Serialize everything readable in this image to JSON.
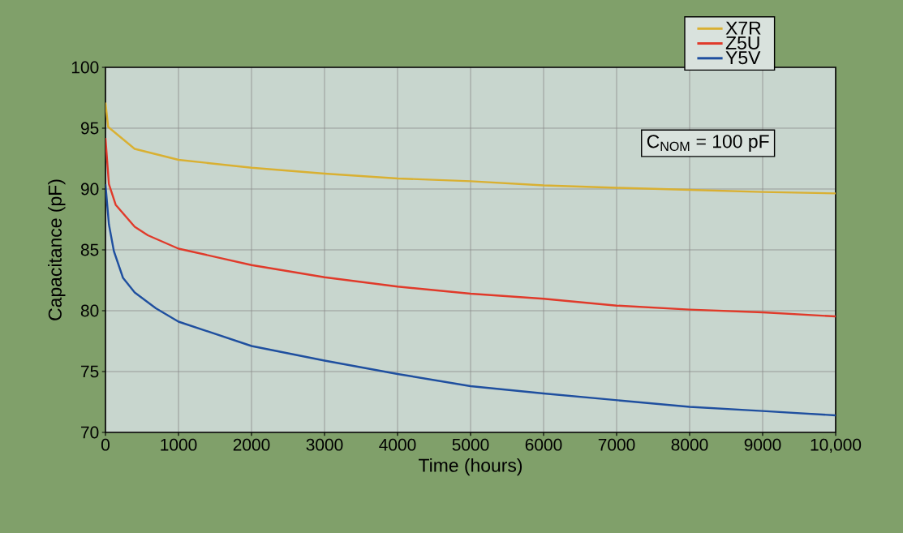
{
  "chart_data": {
    "type": "line",
    "xlabel": "Time (hours)",
    "ylabel": "Capacitance (pF)",
    "xlim": [
      0,
      10000
    ],
    "xticks": [
      0,
      1000,
      2000,
      3000,
      4000,
      5000,
      6000,
      7000,
      8000,
      9000,
      {
        "value": 10000,
        "label": "10,000"
      }
    ],
    "ylim": [
      70,
      100
    ],
    "yticks": [
      70,
      75,
      80,
      85,
      90,
      95,
      100
    ],
    "grid": true,
    "legend": "top right",
    "marker": "none",
    "line_style": "solid",
    "annotations": [
      "C$_{NOM}$ = 100 pF"
    ],
    "series": [
      {
        "name": "X7R",
        "color": "#d9b032",
        "x": [
          0,
          37,
          400,
          1000,
          2000,
          3000,
          4000,
          5000,
          6000,
          7000,
          8000,
          9000,
          10000
        ],
        "values": [
          97.1,
          95.1,
          93.3,
          92.4,
          91.75,
          91.27,
          90.87,
          90.64,
          90.3,
          90.1,
          89.93,
          89.76,
          89.64
        ]
      },
      {
        "name": "Z5U",
        "color": "#e03a2a",
        "x": [
          0,
          47,
          140,
          400,
          580,
          1000,
          2000,
          3000,
          4000,
          5000,
          6000,
          7000,
          8000,
          9000,
          10000
        ],
        "values": [
          94.2,
          90.4,
          88.7,
          86.9,
          86.2,
          85.1,
          83.75,
          82.75,
          81.98,
          81.4,
          80.98,
          80.42,
          80.09,
          79.87,
          79.53
        ]
      },
      {
        "name": "Y5V",
        "color": "#1f4f9f",
        "x": [
          0,
          47,
          115,
          240,
          400,
          690,
          1000,
          2000,
          3000,
          4000,
          5000,
          6000,
          7000,
          8000,
          9000,
          10000
        ],
        "values": [
          90.4,
          87.1,
          84.9,
          82.7,
          81.5,
          80.2,
          79.1,
          77.1,
          75.9,
          74.8,
          73.8,
          73.2,
          72.65,
          72.1,
          71.76,
          71.4
        ]
      }
    ]
  }
}
